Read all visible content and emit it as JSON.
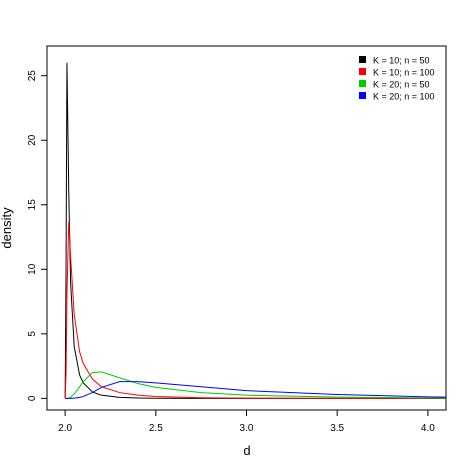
{
  "chart_data": {
    "type": "line",
    "xlabel": "d",
    "ylabel": "density",
    "x": [
      2.0,
      2.005,
      2.01,
      2.02,
      2.03,
      2.05,
      2.08,
      2.1,
      2.15,
      2.2,
      2.3,
      2.4,
      2.5,
      2.75,
      3.0,
      3.5,
      4.0,
      4.1
    ],
    "series": [
      {
        "name": "K = 10; n = 50",
        "color": "#000000",
        "values": [
          0,
          10,
          26,
          16,
          9,
          4,
          1.8,
          1.2,
          0.5,
          0.25,
          0.08,
          0.03,
          0.01,
          0,
          0,
          0,
          0,
          0
        ]
      },
      {
        "name": "K = 10; n = 100",
        "color": "#ff0000",
        "values": [
          0,
          2,
          8,
          13.7,
          11,
          6.5,
          3.6,
          2.7,
          1.5,
          0.9,
          0.45,
          0.25,
          0.15,
          0.05,
          0.02,
          0,
          0,
          0
        ]
      },
      {
        "name": "K = 20; n = 50",
        "color": "#00cd00",
        "values": [
          0,
          0,
          0,
          0.02,
          0.08,
          0.35,
          0.9,
          1.3,
          2.0,
          2.05,
          1.6,
          1.15,
          0.85,
          0.45,
          0.25,
          0.1,
          0.04,
          0.03
        ]
      },
      {
        "name": "K = 20; n = 100",
        "color": "#0000ff",
        "values": [
          0,
          0,
          0,
          0,
          0,
          0.02,
          0.08,
          0.15,
          0.45,
          0.85,
          1.3,
          1.3,
          1.2,
          0.9,
          0.6,
          0.3,
          0.12,
          0.1
        ]
      }
    ],
    "xlim": [
      1.9,
      4.1
    ],
    "ylim": [
      -0.9,
      27.3
    ],
    "xticks": [
      {
        "value": 2,
        "label": "2.0"
      },
      {
        "value": 2.5,
        "label": "2.5"
      },
      {
        "value": 3,
        "label": "3.0"
      },
      {
        "value": 3.5,
        "label": "3.5"
      },
      {
        "value": 4,
        "label": "4.0"
      }
    ],
    "yticks": [
      0,
      5,
      10,
      15,
      20,
      25
    ],
    "legend": "topright"
  }
}
